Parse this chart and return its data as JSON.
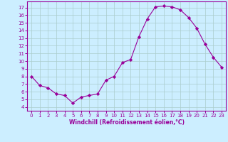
{
  "x": [
    0,
    1,
    2,
    3,
    4,
    5,
    6,
    7,
    8,
    9,
    10,
    11,
    12,
    13,
    14,
    15,
    16,
    17,
    18,
    19,
    20,
    21,
    22,
    23
  ],
  "y": [
    8.0,
    6.8,
    6.5,
    5.7,
    5.5,
    4.5,
    5.3,
    5.5,
    5.7,
    7.5,
    8.0,
    9.8,
    10.2,
    13.2,
    15.5,
    17.1,
    17.2,
    17.1,
    16.7,
    15.7,
    14.3,
    12.2,
    10.5,
    9.2
  ],
  "line_color": "#990099",
  "marker": "D",
  "marker_size": 2.2,
  "bg_color": "#cceeff",
  "grid_color": "#aacccc",
  "xlabel": "Windchill (Refroidissement éolien,°C)",
  "ylim": [
    3.5,
    17.8
  ],
  "xlim": [
    -0.5,
    23.5
  ],
  "yticks": [
    4,
    5,
    6,
    7,
    8,
    9,
    10,
    11,
    12,
    13,
    14,
    15,
    16,
    17
  ],
  "xticks": [
    0,
    1,
    2,
    3,
    4,
    5,
    6,
    7,
    8,
    9,
    10,
    11,
    12,
    13,
    14,
    15,
    16,
    17,
    18,
    19,
    20,
    21,
    22,
    23
  ],
  "tick_color": "#990099",
  "label_color": "#990099",
  "spine_color": "#990099",
  "tick_fontsize": 5.0,
  "xlabel_fontsize": 5.5
}
